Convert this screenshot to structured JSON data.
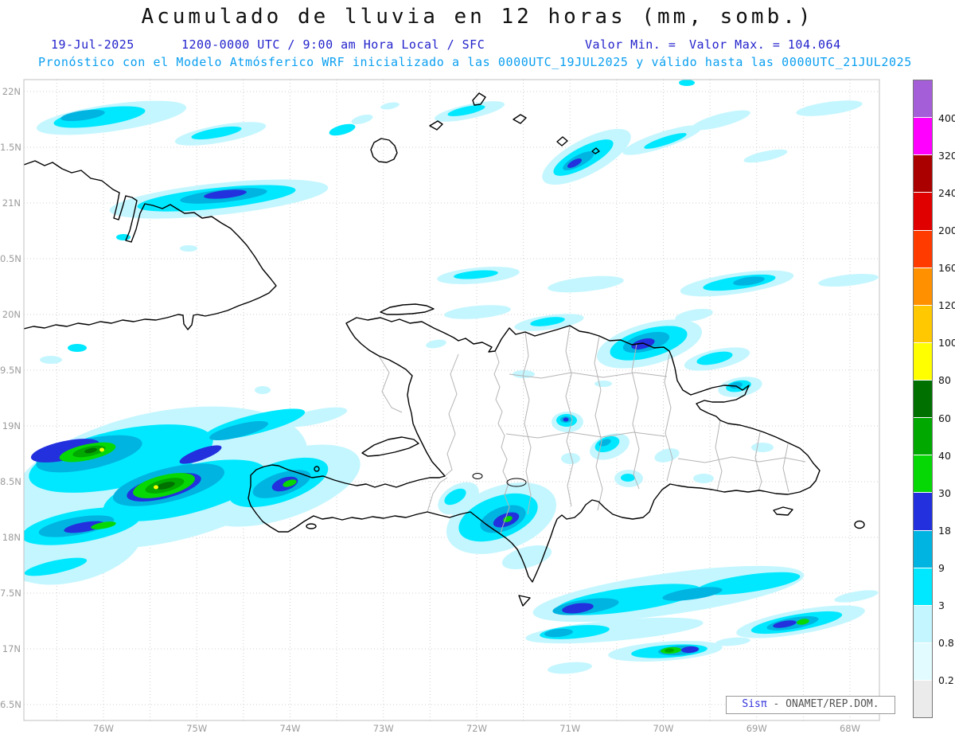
{
  "header": {
    "title": "Acumulado de lluvia en 12 horas (mm, somb.)",
    "line1": {
      "date": "19-Jul-2025",
      "time_range": "1200-0000 UTC / 9:00 am Hora Local / SFC",
      "valor_min": "Valor Min. =",
      "valor_max": "Valor Max. = 104.064"
    },
    "line2": "Pronóstico con el Modelo Atmósferico WRF inicializado a las 0000UTC_19JUL2025 y válido hasta las  0000UTC_21JUL2025"
  },
  "axes": {
    "y_ticks": [
      {
        "label": "22N",
        "lat": 22.0
      },
      {
        "label": "1.5N",
        "lat": 21.5
      },
      {
        "label": "21N",
        "lat": 21.0
      },
      {
        "label": "0.5N",
        "lat": 20.5
      },
      {
        "label": "20N",
        "lat": 20.0
      },
      {
        "label": "9.5N",
        "lat": 19.5
      },
      {
        "label": "19N",
        "lat": 19.0
      },
      {
        "label": "8.5N",
        "lat": 18.5
      },
      {
        "label": "18N",
        "lat": 18.0
      },
      {
        "label": "7.5N",
        "lat": 17.5
      },
      {
        "label": "17N",
        "lat": 17.0
      },
      {
        "label": "6.5N",
        "lat": 16.5
      }
    ],
    "x_ticks": [
      {
        "label": "76W",
        "lon": 76
      },
      {
        "label": "75W",
        "lon": 75
      },
      {
        "label": "74W",
        "lon": 74
      },
      {
        "label": "73W",
        "lon": 73
      },
      {
        "label": "72W",
        "lon": 72
      },
      {
        "label": "71W",
        "lon": 71
      },
      {
        "label": "70W",
        "lon": 70
      },
      {
        "label": "69W",
        "lon": 69
      },
      {
        "label": "68W",
        "lon": 68
      }
    ]
  },
  "colorbar": {
    "levels_top_to_bottom": [
      "400",
      "320",
      "240",
      "200",
      "160",
      "120",
      "100",
      "80",
      "60",
      "40",
      "30",
      "18",
      "9",
      "3",
      "0.8",
      "0.2"
    ]
  },
  "branding": {
    "brand": "Sisπ",
    "suffix": " - ONAMET/REP.DOM."
  },
  "chart_data": {
    "type": "filled-contour-map",
    "title": "Acumulado de lluvia en 12 horas (mm, somb.)",
    "units": "mm",
    "model": "WRF",
    "init": "0000UTC_19JUL2025",
    "valid_until": "0000UTC_21JUL2025",
    "valid_window": "1200-0000 UTC / 9:00 am Hora Local / SFC",
    "value_min": "",
    "value_max": 104.064,
    "region": {
      "lon_west_W": 76.85,
      "lon_east_W": 67.68,
      "lat_south_N": 16.36,
      "lat_north_N": 22.11
    },
    "grid_step_deg": 0.5,
    "contour_levels_mm": [
      0.2,
      0.8,
      3,
      9,
      18,
      30,
      40,
      60,
      80,
      100,
      120,
      160,
      200,
      240,
      320,
      400
    ],
    "palette": {
      "colors_low_to_high": [
        "#ebebeb",
        "#e2fbff",
        "#c4f6ff",
        "#00e8ff",
        "#00b4e1",
        "#2330dd",
        "#06d806",
        "#00a800",
        "#007000",
        "#ffff00",
        "#ffc800",
        "#ff9100",
        "#ff3b00",
        "#e00000",
        "#aa0000",
        "#ff00ff",
        "#a45fd8"
      ]
    },
    "features": [
      {
        "area": "Caribbean SW of Haiti (74.5W-76.8W, 17.9N-19.2N)",
        "max_band_mm": "80-100",
        "note": "largest system; green cores with small yellow maxima"
      },
      {
        "area": "Tiburon peninsula, Haiti (~74W, 18.3N)",
        "max_band_mm": "30-40"
      },
      {
        "area": "North coast Dominican Republic near Puerto Plata (~70.8W, 19.8N)",
        "max_band_mm": "18-30"
      },
      {
        "area": "Barahona / SW Dominican Republic (~71.3W, 18.2N)",
        "max_band_mm": "30-40"
      },
      {
        "area": "Caribbean SE of Hispaniola (68W-71.5W, 16.9N-17.8N)",
        "max_band_mm": "30-60",
        "note": "elongated WSW-ENE rain bands"
      },
      {
        "area": "Atlantic north of Cuba and Hispaniola (21N-22N)",
        "max_band_mm": "18-30",
        "note": "thin WSW-ENE streaks"
      }
    ]
  }
}
